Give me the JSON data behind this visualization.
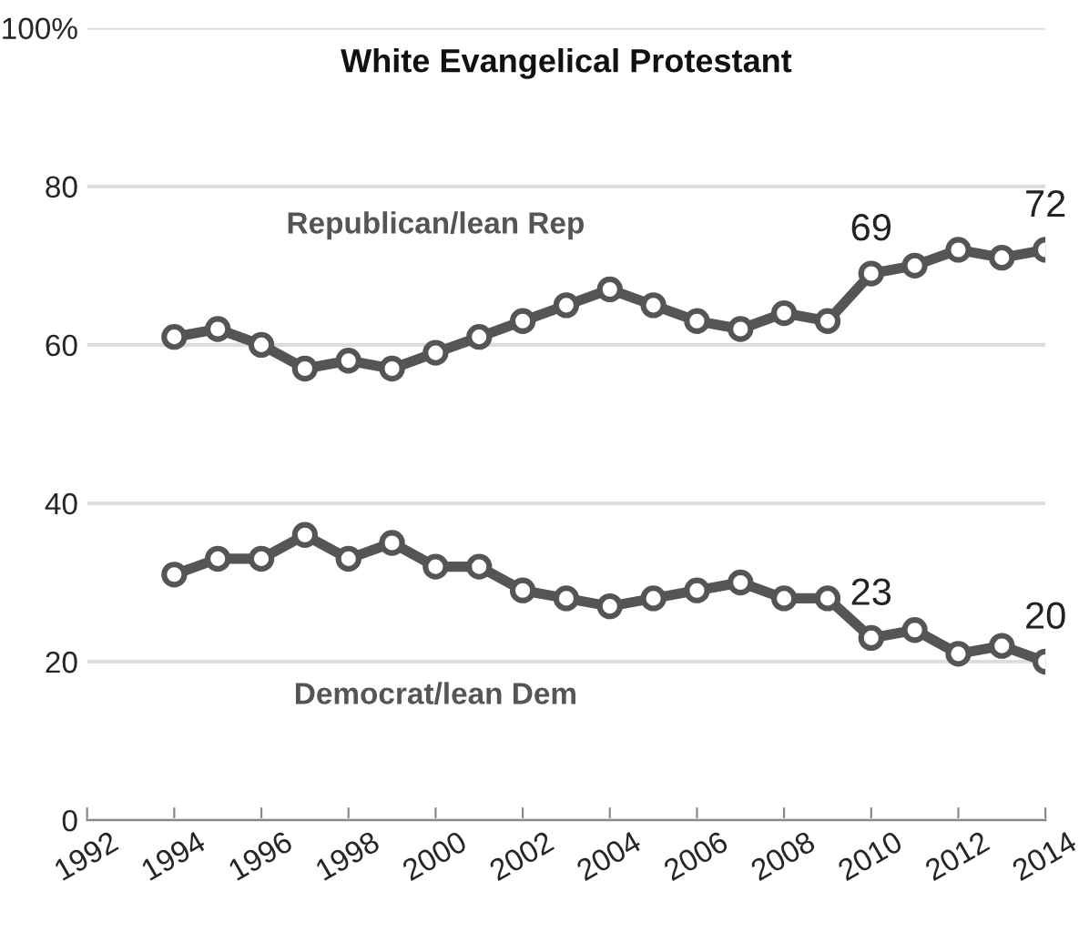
{
  "chart_data": {
    "type": "line",
    "title": "White Evangelical Protestant",
    "x": [
      1994,
      1995,
      1996,
      1997,
      1998,
      1999,
      2000,
      2001,
      2002,
      2003,
      2004,
      2005,
      2006,
      2007,
      2008,
      2009,
      2010,
      2011,
      2012,
      2013,
      2014
    ],
    "series": [
      {
        "name": "Republican/lean Rep",
        "color": "#555555",
        "values": [
          61,
          62,
          60,
          57,
          58,
          57,
          59,
          61,
          63,
          65,
          67,
          65,
          63,
          62,
          64,
          63,
          69,
          70,
          72,
          71,
          72
        ],
        "value_labels": [
          null,
          null,
          null,
          null,
          null,
          null,
          null,
          null,
          null,
          null,
          null,
          null,
          null,
          null,
          null,
          null,
          "69",
          null,
          null,
          null,
          "72"
        ]
      },
      {
        "name": "Democrat/lean Dem",
        "color": "#555555",
        "values": [
          31,
          33,
          33,
          36,
          33,
          35,
          32,
          32,
          29,
          28,
          27,
          28,
          29,
          30,
          28,
          28,
          23,
          24,
          21,
          22,
          20
        ],
        "value_labels": [
          null,
          null,
          null,
          null,
          null,
          null,
          null,
          null,
          null,
          null,
          null,
          null,
          null,
          null,
          null,
          null,
          "23",
          null,
          null,
          null,
          "20"
        ]
      }
    ],
    "xlim": [
      1992,
      2014
    ],
    "xticks": [
      1992,
      1994,
      1996,
      1998,
      2000,
      2002,
      2004,
      2006,
      2008,
      2010,
      2012,
      2014
    ],
    "ylim": [
      0,
      100
    ],
    "yticks": [
      0,
      20,
      40,
      60,
      80,
      {
        "value": 100,
        "label": "100%"
      }
    ],
    "grid": "y",
    "legend": false,
    "marker": "circle",
    "line_style": "solid"
  }
}
